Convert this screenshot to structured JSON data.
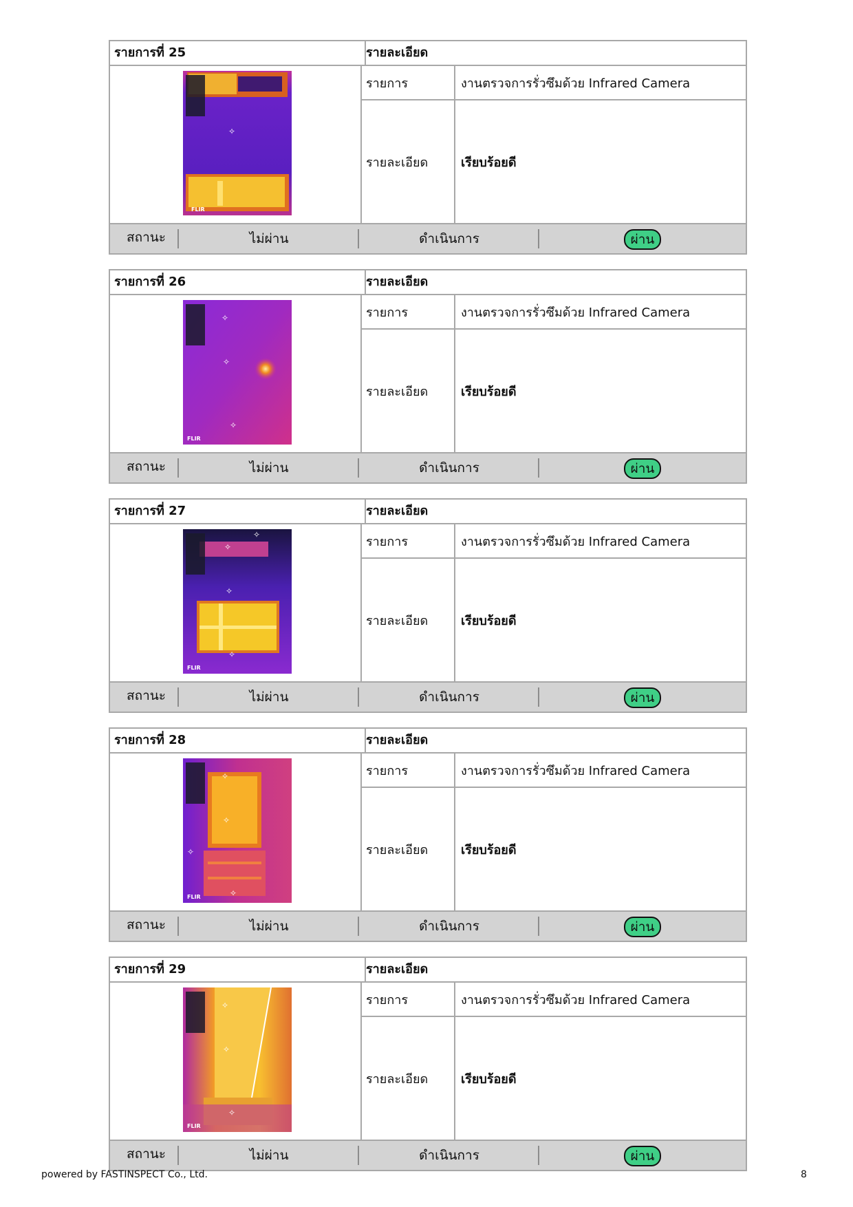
{
  "items": [
    {
      "title": "รายการที่ 25",
      "detail_header": "รายละเอียด",
      "item_label": "รายการ",
      "item_value": "งานตรวจการรั่วซึมด้วย Infrared Camera",
      "detail_label": "รายละเอียด",
      "detail_value": "เรียบร้อยดี",
      "status_label": "สถานะ",
      "status_fail": "ไม่ผ่าน",
      "status_progress": "ดำเนินการ",
      "status_pass": "ผ่าน",
      "selected_status": "ผ่าน",
      "image_logo": "FLIR"
    },
    {
      "title": "รายการที่ 26",
      "detail_header": "รายละเอียด",
      "item_label": "รายการ",
      "item_value": "งานตรวจการรั่วซึมด้วย Infrared Camera",
      "detail_label": "รายละเอียด",
      "detail_value": "เรียบร้อยดี",
      "status_label": "สถานะ",
      "status_fail": "ไม่ผ่าน",
      "status_progress": "ดำเนินการ",
      "status_pass": "ผ่าน",
      "selected_status": "ผ่าน",
      "image_logo": "FLIR"
    },
    {
      "title": "รายการที่ 27",
      "detail_header": "รายละเอียด",
      "item_label": "รายการ",
      "item_value": "งานตรวจการรั่วซึมด้วย Infrared Camera",
      "detail_label": "รายละเอียด",
      "detail_value": "เรียบร้อยดี",
      "status_label": "สถานะ",
      "status_fail": "ไม่ผ่าน",
      "status_progress": "ดำเนินการ",
      "status_pass": "ผ่าน",
      "selected_status": "ผ่าน",
      "image_logo": "FLIR"
    },
    {
      "title": "รายการที่ 28",
      "detail_header": "รายละเอียด",
      "item_label": "รายการ",
      "item_value": "งานตรวจการรั่วซึมด้วย Infrared Camera",
      "detail_label": "รายละเอียด",
      "detail_value": "เรียบร้อยดี",
      "status_label": "สถานะ",
      "status_fail": "ไม่ผ่าน",
      "status_progress": "ดำเนินการ",
      "status_pass": "ผ่าน",
      "selected_status": "ผ่าน",
      "image_logo": "FLIR"
    },
    {
      "title": "รายการที่ 29",
      "detail_header": "รายละเอียด",
      "item_label": "รายการ",
      "item_value": "งานตรวจการรั่วซึมด้วย Infrared Camera",
      "detail_label": "รายละเอียด",
      "detail_value": "เรียบร้อยดี",
      "status_label": "สถานะ",
      "status_fail": "ไม่ผ่าน",
      "status_progress": "ดำเนินการ",
      "status_pass": "ผ่าน",
      "selected_status": "ผ่าน",
      "image_logo": "FLIR"
    }
  ],
  "colors": {
    "pass_pill": "#3fcf86",
    "status_bar": "#d3d3d3",
    "border": "#a8a8a8"
  },
  "footer": {
    "powered_by": "powered by FASTINSPECT Co., Ltd.",
    "page_number": "8"
  }
}
